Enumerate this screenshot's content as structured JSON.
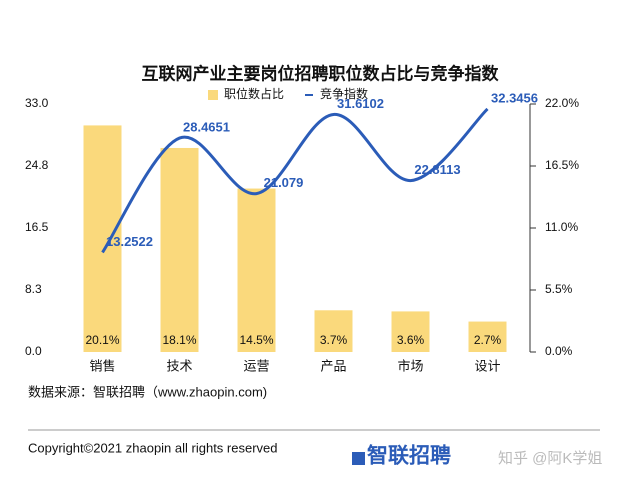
{
  "chart_data": {
    "type": "bar-line",
    "title": "互联网产业主要岗位招聘职位数占比与竞争指数",
    "categories": [
      "销售",
      "技术",
      "运营",
      "产品",
      "市场",
      "设计"
    ],
    "series": [
      {
        "name": "职位数占比",
        "color": "#fad97c",
        "type": "bar",
        "axis": "y2",
        "values": [
          20.1,
          18.1,
          14.5,
          3.7,
          3.6,
          2.7
        ],
        "value_labels": [
          "20.1%",
          "18.1%",
          "14.5%",
          "3.7%",
          "3.6%",
          "2.7%"
        ]
      },
      {
        "name": "竞争指数",
        "color": "#2b5cb8",
        "type": "line",
        "values": [
          13.2522,
          28.4651,
          21.079,
          31.6102,
          22.8113,
          32.3456
        ]
      }
    ],
    "ylim": [
      0,
      33
    ],
    "yticks": [
      {
        "value": 0,
        "label": "0.0"
      },
      8.3,
      16.5,
      24.8,
      {
        "value": 33,
        "label": "33.0"
      }
    ],
    "y2lim": [
      0,
      22
    ],
    "y2ticks": [
      {
        "value": 0,
        "label": "0.0%"
      },
      {
        "value": 5.5,
        "label": "5.5%"
      },
      {
        "value": 11,
        "label": "11.0%"
      },
      {
        "value": 16.5,
        "label": "16.5%"
      },
      {
        "value": 22,
        "label": "22.0%"
      }
    ],
    "source": "数据来源：智联招聘（www.zhaopin.com)",
    "copyright": "Copyright©2021 zhaopin all rights reserved",
    "logo": "智联招聘",
    "watermark": "知乎 @阿K学姐"
  }
}
